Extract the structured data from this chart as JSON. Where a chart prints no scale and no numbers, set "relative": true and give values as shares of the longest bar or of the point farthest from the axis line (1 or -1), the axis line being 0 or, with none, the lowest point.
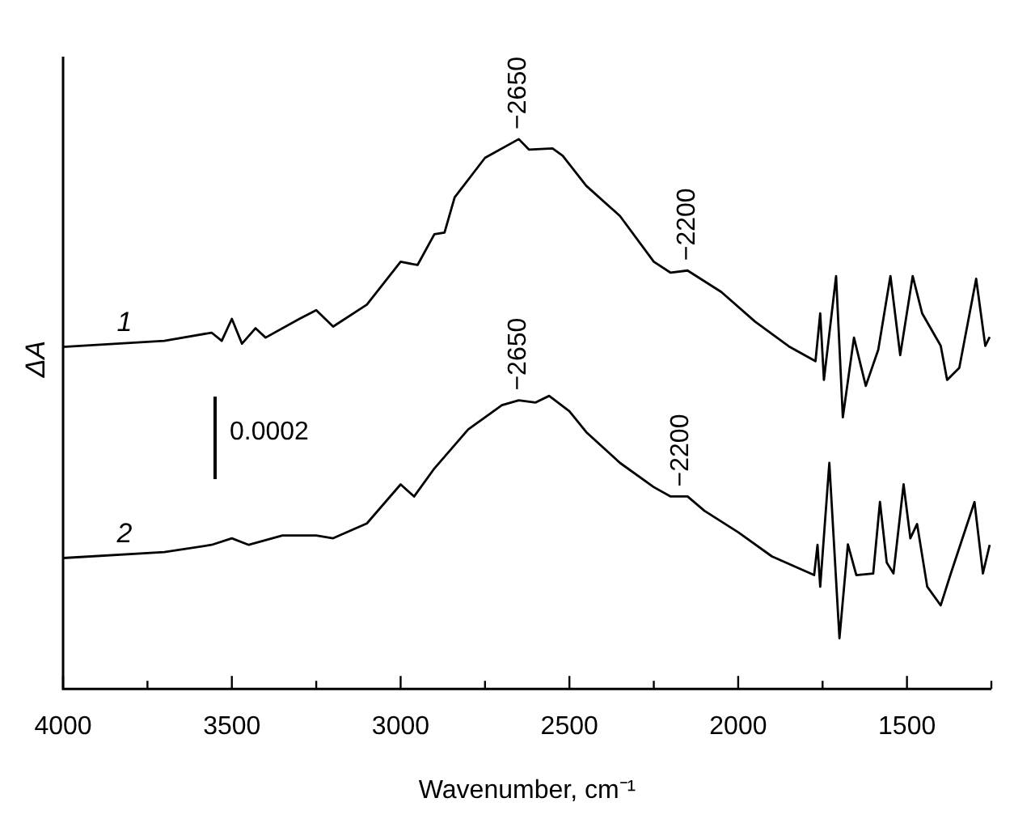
{
  "chart_data": {
    "type": "line",
    "xlabel": "Wavenumber, cm⁻¹",
    "ylabel": "ΔA",
    "relative": true,
    "legend": false,
    "marker": "none",
    "line_style": "solid",
    "xlim": [
      4000,
      1250
    ],
    "xticks": [
      4000,
      {
        "value": 3750,
        "label": null
      },
      3500,
      {
        "value": 3250,
        "label": null
      },
      3000,
      {
        "value": 2750,
        "label": null
      },
      2500,
      {
        "value": 2250,
        "label": null
      },
      2000,
      {
        "value": 1750,
        "label": null
      },
      1500,
      {
        "value": 1250,
        "label": null
      }
    ],
    "series": [
      {
        "name": "1",
        "color": "#000000",
        "x": [
          4000,
          3700,
          3560,
          3530,
          3500,
          3470,
          3430,
          3400,
          3300,
          3250,
          3200,
          3100,
          3000,
          2950,
          2900,
          2870,
          2840,
          2750,
          2650,
          2620,
          2550,
          2520,
          2450,
          2350,
          2250,
          2200,
          2150,
          2050,
          1950,
          1850,
          1771,
          1757,
          1746,
          1710,
          1690,
          1657,
          1622,
          1585,
          1549,
          1520,
          1483,
          1455,
          1400,
          1381,
          1345,
          1295,
          1268,
          1255
        ],
        "values": [
          0.622,
          0.633,
          0.648,
          0.633,
          0.673,
          0.628,
          0.656,
          0.639,
          0.673,
          0.689,
          0.659,
          0.699,
          0.777,
          0.771,
          0.827,
          0.83,
          0.894,
          0.966,
          1,
          0.981,
          0.983,
          0.97,
          0.915,
          0.86,
          0.777,
          0.757,
          0.761,
          0.722,
          0.668,
          0.623,
          0.596,
          0.683,
          0.562,
          0.751,
          0.494,
          0.639,
          0.551,
          0.617,
          0.751,
          0.607,
          0.751,
          0.683,
          0.624,
          0.562,
          0.584,
          0.746,
          0.624,
          0.64
        ]
      },
      {
        "name": "2",
        "color": "#000000",
        "x": [
          4000,
          3700,
          3560,
          3500,
          3450,
          3350,
          3250,
          3200,
          3100,
          3000,
          2960,
          2900,
          2800,
          2700,
          2650,
          2600,
          2560,
          2500,
          2450,
          2350,
          2250,
          2200,
          2150,
          2100,
          2000,
          1900,
          1775,
          1765,
          1757,
          1730,
          1700,
          1675,
          1650,
          1600,
          1580,
          1560,
          1540,
          1510,
          1490,
          1470,
          1440,
          1400,
          1370,
          1300,
          1275,
          1255
        ],
        "values": [
          0.238,
          0.249,
          0.262,
          0.274,
          0.262,
          0.279,
          0.279,
          0.274,
          0.301,
          0.372,
          0.35,
          0.401,
          0.472,
          0.516,
          0.525,
          0.521,
          0.533,
          0.505,
          0.467,
          0.411,
          0.367,
          0.35,
          0.35,
          0.324,
          0.285,
          0.241,
          0.207,
          0.262,
          0.186,
          0.411,
          0.092,
          0.263,
          0.207,
          0.21,
          0.34,
          0.23,
          0.21,
          0.372,
          0.274,
          0.3,
          0.186,
          0.152,
          0.21,
          0.34,
          0.21,
          0.262
        ]
      }
    ],
    "annotations": [
      {
        "text": "−2650",
        "x": 2650,
        "y": 1
      },
      {
        "text": "−2200",
        "x": 2150,
        "y": 0.761
      },
      {
        "text": "−2650",
        "x": 2650,
        "y": 0.525
      },
      {
        "text": "−2200",
        "x": 2170,
        "y": 0.35
      },
      "0.0002"
    ]
  }
}
